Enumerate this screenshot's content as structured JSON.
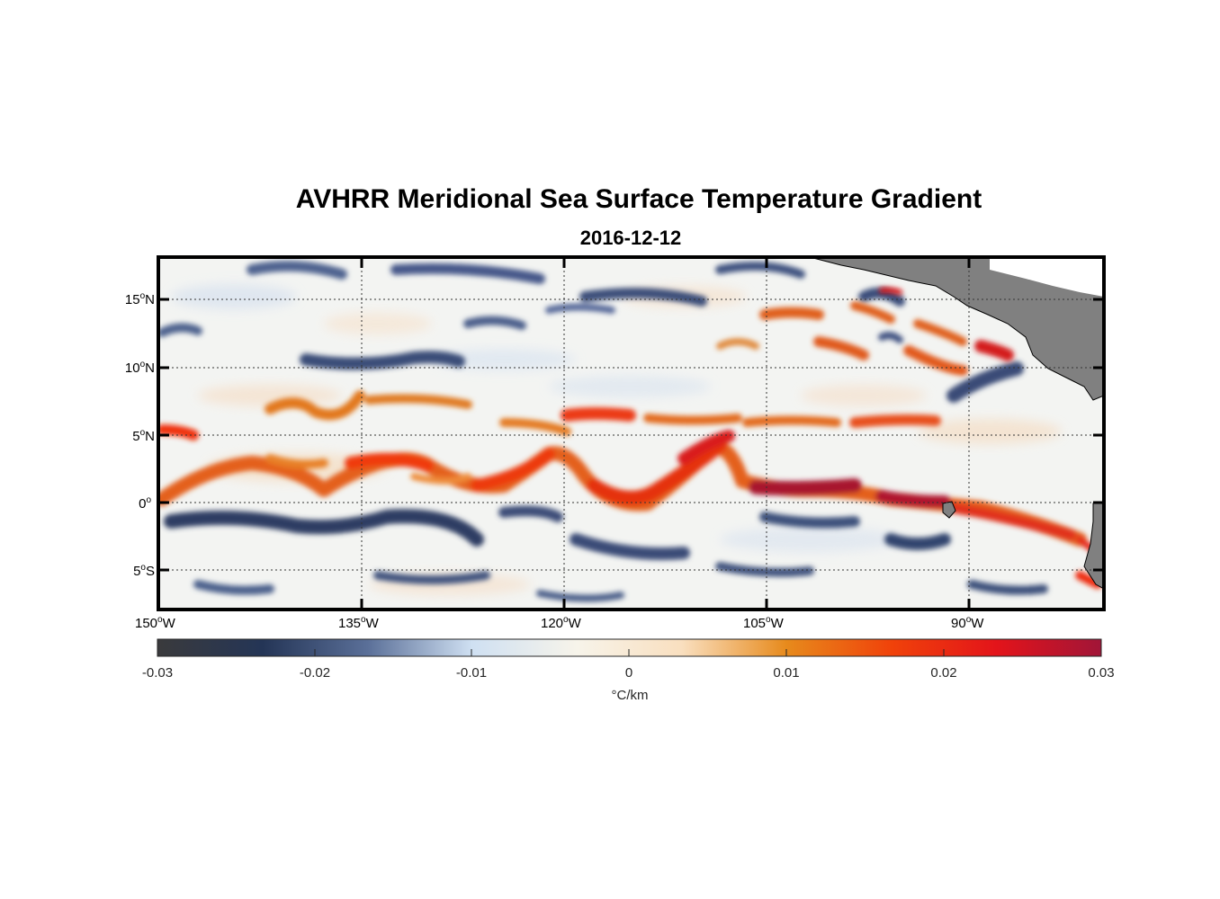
{
  "title": "AVHRR Meridional Sea Surface Temperature Gradient",
  "date": "2016-12-12",
  "map": {
    "lat_labels": [
      {
        "deg": "15",
        "hemi": "N"
      },
      {
        "deg": "10",
        "hemi": "N"
      },
      {
        "deg": "5",
        "hemi": "N"
      },
      {
        "deg": "0",
        "hemi": ""
      },
      {
        "deg": "5",
        "hemi": "S"
      }
    ],
    "lon_labels": [
      {
        "deg": "150",
        "hemi": "W"
      },
      {
        "deg": "135",
        "hemi": "W"
      },
      {
        "deg": "120",
        "hemi": "W"
      },
      {
        "deg": "105",
        "hemi": "W"
      },
      {
        "deg": "90",
        "hemi": "W"
      }
    ],
    "degree_symbol": "o",
    "colors": {
      "land": "#808080",
      "strong_positive": "#a6192e",
      "positive": "#e8410d",
      "weak_positive": "#e07a1f",
      "negative": "#3d4f73",
      "strong_negative": "#1f2b48"
    }
  },
  "colorbar": {
    "ticks": [
      "-0.03",
      "-0.02",
      "-0.01",
      "0",
      "0.01",
      "0.02",
      "0.03"
    ],
    "units": "°C/km",
    "stops": [
      "#3a3a3c",
      "#243556",
      "#5a6f98",
      "#cfe0f2",
      "#f7f4ea",
      "#f9dfbf",
      "#e78a1c",
      "#f0420a",
      "#e3141a",
      "#a11538"
    ]
  }
}
